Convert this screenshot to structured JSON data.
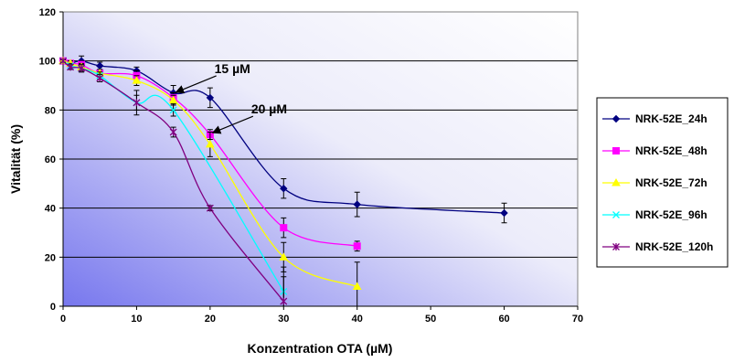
{
  "chart_data": {
    "type": "line",
    "xlabel": "Konzentration OTA (µM)",
    "ylabel": "Vitalität (%)",
    "xlim": [
      0,
      70
    ],
    "ylim": [
      0,
      120
    ],
    "xticks": [
      "0",
      "10",
      "20",
      "30",
      "40",
      "50",
      "60",
      "70"
    ],
    "yticks": [
      "0",
      "20",
      "40",
      "60",
      "80",
      "100",
      "120"
    ],
    "grid": "horizontal",
    "legend_position": "right",
    "background": "gradient blue-to-white",
    "series": [
      {
        "name": "NRK-52E_24h",
        "color": "#000080",
        "marker": "diamond",
        "x": [
          0,
          1,
          2.5,
          5,
          10,
          15,
          20,
          30,
          40,
          60
        ],
        "y": [
          100,
          99,
          100,
          98,
          96,
          87,
          85,
          48,
          41.5,
          38
        ],
        "err": [
          0.5,
          1,
          2,
          1.5,
          1.5,
          3,
          4,
          4,
          5,
          4
        ]
      },
      {
        "name": "NRK-52E_48h",
        "color": "#FF00FF",
        "marker": "square",
        "x": [
          0,
          1,
          2.5,
          5,
          10,
          15,
          20,
          30,
          40
        ],
        "y": [
          100,
          99,
          98.5,
          95,
          94,
          85,
          70,
          32,
          24.5
        ],
        "err": [
          0.5,
          1,
          1.5,
          1.5,
          2,
          2,
          2,
          4,
          2
        ]
      },
      {
        "name": "NRK-52E_72h",
        "color": "#FFFF00",
        "marker": "triangle",
        "x": [
          0,
          1,
          2.5,
          5,
          10,
          15,
          20,
          30,
          40
        ],
        "y": [
          100,
          99,
          97.5,
          95,
          92,
          84,
          66,
          20,
          8
        ],
        "err": [
          0.5,
          1,
          1.5,
          1.5,
          2,
          2,
          5,
          6,
          10
        ]
      },
      {
        "name": "NRK-52E_96h",
        "color": "#00FFFF",
        "marker": "x",
        "x": [
          0,
          1,
          2.5,
          5,
          10,
          15,
          30
        ],
        "y": [
          100,
          98,
          97,
          94,
          83,
          80,
          6
        ],
        "err": [
          0.5,
          1,
          1.5,
          1.5,
          3,
          2.5,
          6
        ]
      },
      {
        "name": "NRK-52E_120h",
        "color": "#800080",
        "marker": "star",
        "x": [
          0,
          1,
          2.5,
          5,
          10,
          15,
          20,
          30
        ],
        "y": [
          100,
          97.5,
          97,
          93,
          83,
          71,
          40,
          2
        ],
        "err": [
          0.5,
          1,
          1.5,
          1.5,
          5,
          2,
          1,
          14
        ]
      }
    ],
    "annotations": [
      {
        "text": "15 µM",
        "x": 15,
        "y": 86.5
      },
      {
        "text": "20 µM",
        "x": 20,
        "y": 70
      }
    ]
  }
}
